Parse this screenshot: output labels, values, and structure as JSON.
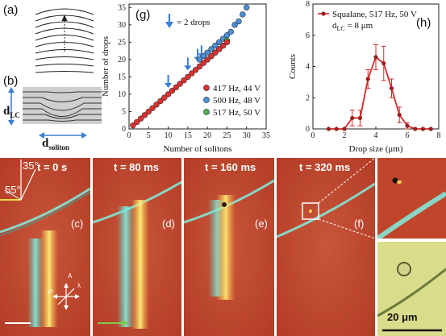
{
  "panels": {
    "a": "(a)",
    "b": "(b)",
    "c": "(c)",
    "d": "(d)",
    "e": "(e)",
    "f": "(f)",
    "g": "(g)",
    "h": "(h)"
  },
  "schematic": {
    "d_lc_main": "d",
    "d_lc_sub": "LC",
    "d_soliton_main": "d",
    "d_soliton_sub": "soliton"
  },
  "micrographs": {
    "times": [
      "t = 0 s",
      "t = 80 ms",
      "t = 160 ms",
      "t = 320 ms"
    ],
    "angle_35": "35°",
    "angle_55": "55°",
    "axis_A": "A",
    "axis_P": "P",
    "axis_lambda": "λ",
    "scale_label": "20 μm"
  },
  "colors": {
    "red_series": "#e03030",
    "blue_series": "#4a90d9",
    "green_series": "#4cb04c",
    "arrow_blue": "#3b7fd1",
    "curve_red": "#d42a2a",
    "micro_bg": "#c24a2e",
    "green_arrow": "#7ec850",
    "angle_line": "#e8d84a"
  },
  "chart_data": [
    {
      "type": "scatter",
      "panel": "(g)",
      "xlabel": "Number of solitons",
      "ylabel": "Number of drops",
      "xlim": [
        0,
        35
      ],
      "ylim": [
        0,
        36
      ],
      "xticks": [
        "0",
        "5",
        "10",
        "15",
        "20",
        "25",
        "30",
        "35"
      ],
      "yticks": [
        "0",
        "5",
        "10",
        "15",
        "20",
        "25",
        "30",
        "35"
      ],
      "annotation": "= 2 drops",
      "arrow_x": [
        10,
        15,
        17.5,
        18.5
      ],
      "legend_position": "bottom-right",
      "series": [
        {
          "name": "417 Hz, 44 V",
          "color": "#e03030",
          "x": [
            1,
            2,
            3,
            4,
            5,
            6,
            7,
            8,
            9,
            10,
            11,
            12,
            13,
            14,
            15,
            16,
            17,
            18,
            19,
            20,
            21,
            22,
            23,
            24,
            25
          ],
          "y": [
            1,
            2,
            3,
            4,
            5,
            6,
            7,
            8,
            9,
            10,
            11,
            12,
            13,
            14,
            15,
            16,
            17,
            18,
            19,
            20,
            21,
            22,
            23,
            24,
            25
          ]
        },
        {
          "name": "500 Hz, 48 V",
          "color": "#4a90d9",
          "x": [
            18,
            19,
            20,
            21,
            22,
            23,
            24,
            25,
            26,
            27,
            28,
            29,
            30
          ],
          "y": [
            20,
            21,
            22,
            23,
            24,
            25,
            26,
            27,
            28,
            30,
            31,
            33,
            35
          ]
        },
        {
          "name": "517 Hz, 50 V",
          "color": "#4cb04c",
          "x": [
            18,
            19,
            20,
            21,
            22,
            23,
            24,
            25
          ],
          "y": [
            18,
            19,
            20,
            21,
            22,
            23,
            24,
            25.5
          ]
        }
      ]
    },
    {
      "type": "line",
      "panel": "(h)",
      "xlabel": "Drop size (μm)",
      "ylabel": "Counts",
      "xlim": [
        0,
        8
      ],
      "ylim": [
        0,
        8
      ],
      "xticks": [
        "0",
        "2",
        "4",
        "6",
        "8"
      ],
      "yticks": [
        "0",
        "2",
        "4",
        "6",
        "8"
      ],
      "legend_line1": "Squalane, 517 Hz, 50 V",
      "legend_line2_main": "d",
      "legend_line2_sub": "LC",
      "legend_line2_rest": " = 8 μm",
      "legend_position": "top-left",
      "series": [
        {
          "name": "Squalane, 517 Hz, 50 V",
          "color": "#d42a2a",
          "x": [
            1,
            1.5,
            2,
            2.5,
            3,
            3.5,
            4,
            4.5,
            5,
            5.5,
            6,
            6.5,
            7,
            7.5
          ],
          "y": [
            0,
            0,
            0,
            0.7,
            0.7,
            3.2,
            4.6,
            4.2,
            2.6,
            0.9,
            0.2,
            0,
            0,
            0
          ],
          "err": [
            0,
            0,
            0,
            0.5,
            0.5,
            0.6,
            0.8,
            1.1,
            0.6,
            0.5,
            0.2,
            0,
            0,
            0
          ]
        }
      ]
    }
  ]
}
